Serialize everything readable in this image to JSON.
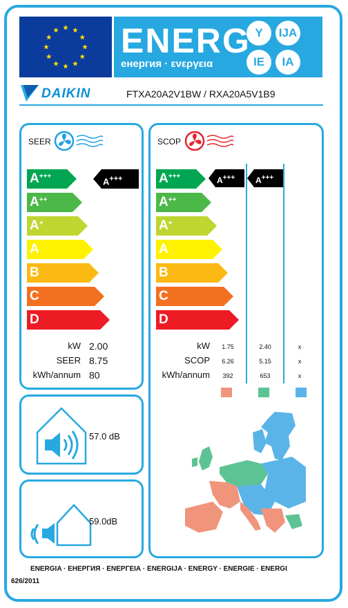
{
  "header": {
    "energ": "ENERG",
    "energ_sub": "енергия · ενεργεια",
    "lang_y": "Y",
    "lang_ija": "IJA",
    "lang_ie": "IE",
    "lang_ia": "IA"
  },
  "brand": {
    "logo_text": "DAIKIN",
    "model": "FTXA20A2V1BW / RXA20A5V1B9"
  },
  "seer_panel": {
    "title": "SEER",
    "classes": [
      "A+++",
      "A++",
      "A+",
      "A",
      "B",
      "C",
      "D"
    ],
    "class_colors": [
      "#00a651",
      "#4cb848",
      "#bed630",
      "#fff200",
      "#fdb913",
      "#f37021",
      "#ed1c24"
    ],
    "rating_class": "A+++",
    "rating_level": 0,
    "rows": [
      {
        "label": "kW",
        "value": "2.00"
      },
      {
        "label": "SEER",
        "value": "8.75"
      },
      {
        "label": "kWh/annum",
        "value": "80"
      }
    ]
  },
  "scop_panel": {
    "title": "SCOP",
    "classes": [
      "A+++",
      "A++",
      "A+",
      "A",
      "B",
      "C",
      "D"
    ],
    "ratings": [
      "A+++",
      "A+++"
    ],
    "rows": [
      {
        "label": "kW",
        "values": [
          "1.75",
          "2.40",
          "x"
        ]
      },
      {
        "label": "SCOP",
        "values": [
          "6.26",
          "5.15",
          "x"
        ]
      },
      {
        "label": "kWh/annum",
        "values": [
          "392",
          "653",
          "x"
        ]
      }
    ],
    "zone_colors": [
      "#f0957b",
      "#5ec394",
      "#5ab4e8"
    ]
  },
  "noise": {
    "indoor": "57.0 dB",
    "outdoor": "59.0dB"
  },
  "footer": {
    "languages": "ENERGIA · ЕНЕРГИЯ · ΕΝΕΡΓΕΙΑ · ENERGIJA · ENERGY · ENERGIE · ENERGI",
    "regulation": "626/2011"
  },
  "colors": {
    "frame": "#27a8e0",
    "eu_blue": "#0b3b9c",
    "eu_star": "#ffdd00",
    "fan_blue": "#1fa3e0",
    "fan_red": "#e3262e"
  }
}
